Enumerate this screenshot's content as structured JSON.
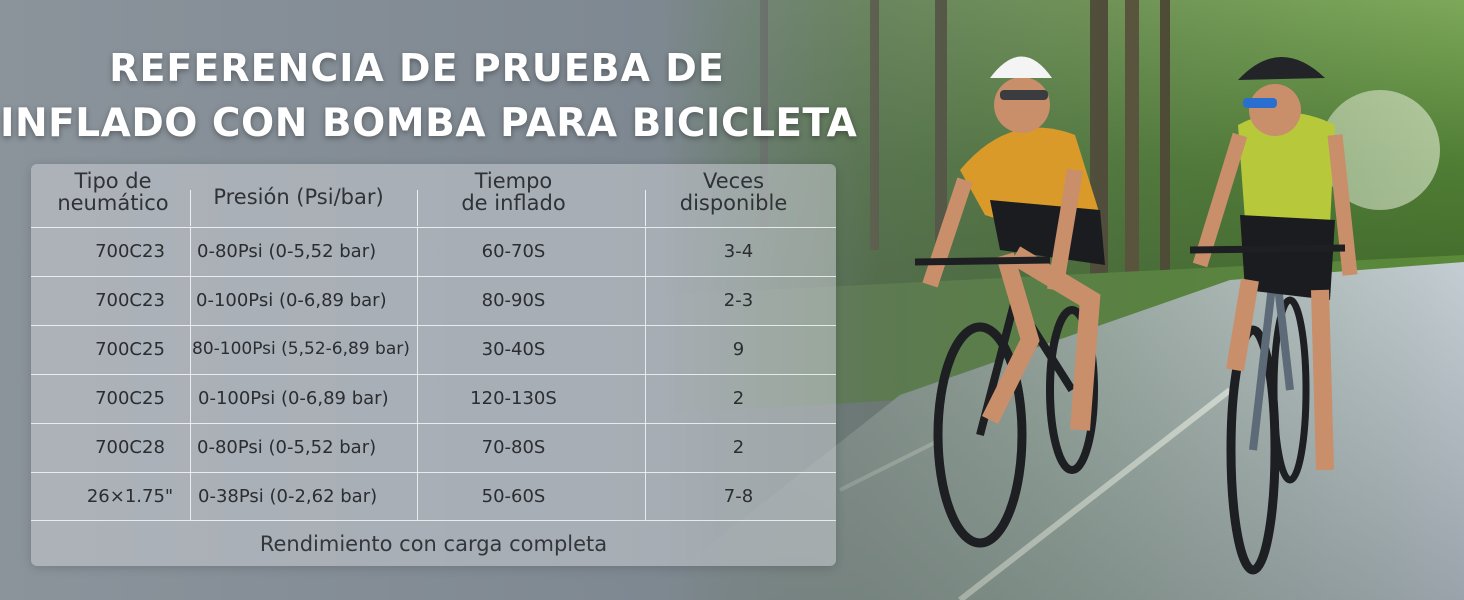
{
  "title": {
    "line1": "REFERENCIA DE PRUEBA DE",
    "line2": "INFLADO CON BOMBA PARA BICICLETA"
  },
  "table": {
    "headers": [
      {
        "line1": "Tipo de",
        "line2": "neumático"
      },
      {
        "line1": "Presión (Psi/bar)",
        "line2": ""
      },
      {
        "line1": "Tiempo",
        "line2": "de inflado"
      },
      {
        "line1": "Veces",
        "line2": "disponible"
      }
    ],
    "rows": [
      [
        "700C23",
        "0-80Psi (0-5,52 bar)",
        "60-70S",
        "3-4"
      ],
      [
        "700C23",
        "0-100Psi (0-6,89 bar)",
        "80-90S",
        "2-3"
      ],
      [
        "700C25",
        "80-100Psi (5,52-6,89 bar)",
        "30-40S",
        "9"
      ],
      [
        "700C25",
        "0-100Psi (0-6,89 bar)",
        "120-130S",
        "2"
      ],
      [
        "700C28",
        "0-80Psi (0-5,52 bar)",
        "70-80S",
        "2"
      ],
      [
        "26×1.75\"",
        "0-38Psi (0-2,62 bar)",
        "50-60S",
        "7-8"
      ]
    ],
    "footer": "Rendimiento con carga completa"
  },
  "colors": {
    "title_text": "#ffffff",
    "table_text": "#2a2d31",
    "panel_bg": "#c8ccd1",
    "grid_lines": "#ffffff"
  }
}
